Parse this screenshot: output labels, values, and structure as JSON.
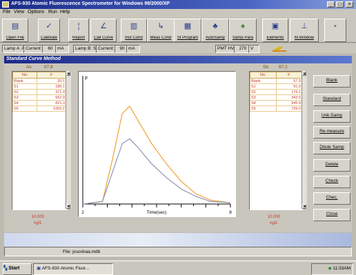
{
  "window": {
    "title": "AFS-930 Atomic Fluorescence Spectrometer for Windows 98/2000/XP",
    "controls": [
      "_",
      "□",
      "×"
    ]
  },
  "menu": [
    "File",
    "View",
    "Options",
    "Run",
    "Help"
  ],
  "toolbar": [
    {
      "label": "Open File",
      "icon": "folder-icon"
    },
    {
      "label": "Calibrate",
      "icon": "calibrate-icon"
    },
    {
      "label": "Report",
      "icon": "report-icon"
    },
    {
      "label": "Cali Curve",
      "icon": "curve-icon"
    },
    {
      "label": "Inst Cond",
      "icon": "instrument-icon"
    },
    {
      "label": "Meas Cond",
      "icon": "measure-icon"
    },
    {
      "label": "St Program",
      "icon": "program-icon"
    },
    {
      "label": "AutoSamp",
      "icon": "autosampler-icon"
    },
    {
      "label": "Samp Para",
      "icon": "sample-params-icon"
    },
    {
      "label": "Elements",
      "icon": "elements-icon"
    },
    {
      "label": "M.Window",
      "icon": "window-icon"
    },
    {
      "label": "",
      "icon": "exit-icon"
    }
  ],
  "status": {
    "lampA": "Lamp A: As",
    "currentA_label": "Current:",
    "currentA_value": "60",
    "currentA_unit": "mA",
    "lampB": "Lamp B: Sb",
    "currentB_label": "Current:",
    "currentB_value": "90",
    "currentB_unit": "mA",
    "pmt_label": "PMT HV:",
    "pmt_value": "270",
    "pmt_unit": "V"
  },
  "child_window": {
    "title": "Standard Curve Method"
  },
  "left_panel": {
    "element": "As",
    "header_value": "97.8",
    "columns": [
      "No.",
      "F"
    ],
    "rows": [
      {
        "no": "Blank",
        "f": "20.1"
      },
      {
        "no": "S1",
        "f": "186.1"
      },
      {
        "no": "S2",
        "f": "371.4"
      },
      {
        "no": "S3",
        "f": "562.9"
      },
      {
        "no": "S4",
        "f": "821.3"
      },
      {
        "no": "S5",
        "f": "1050.2"
      }
    ],
    "result_value": "10.000",
    "result_unit": "ng/L"
  },
  "right_panel": {
    "element": "Sb",
    "header_value": "97.2",
    "columns": [
      "No.",
      "F"
    ],
    "rows": [
      {
        "no": "Blank",
        "f": "57.3"
      },
      {
        "no": "S1",
        "f": "91.9"
      },
      {
        "no": "S2",
        "f": "176.1"
      },
      {
        "no": "S3",
        "f": "343.5"
      },
      {
        "no": "S4",
        "f": "545.9"
      },
      {
        "no": "S5",
        "f": "726.0"
      }
    ],
    "result_value": "10.000",
    "result_unit": "ng/L"
  },
  "plot": {
    "y_label": "F",
    "x_label": "Time(sec)",
    "x_start": "2",
    "x_end": "8",
    "series": [
      {
        "color": "#f0a232",
        "points": [
          [
            2,
            0
          ],
          [
            2.8,
            0.02
          ],
          [
            3.2,
            0.35
          ],
          [
            3.6,
            0.72
          ],
          [
            3.9,
            0.78
          ],
          [
            4.2,
            0.68
          ],
          [
            4.8,
            0.48
          ],
          [
            5.4,
            0.32
          ],
          [
            6.0,
            0.18
          ],
          [
            6.6,
            0.08
          ],
          [
            7.2,
            0.03
          ],
          [
            8,
            0.01
          ]
        ]
      },
      {
        "color": "#8c97b8",
        "points": [
          [
            2,
            0
          ],
          [
            2.8,
            0.02
          ],
          [
            3.2,
            0.25
          ],
          [
            3.6,
            0.48
          ],
          [
            3.9,
            0.52
          ],
          [
            4.2,
            0.46
          ],
          [
            4.8,
            0.32
          ],
          [
            5.4,
            0.21
          ],
          [
            6.0,
            0.12
          ],
          [
            6.6,
            0.06
          ],
          [
            7.2,
            0.02
          ],
          [
            8,
            0.01
          ]
        ]
      }
    ]
  },
  "side_buttons": [
    "Blank",
    "Standard",
    "Unk.Samp",
    "Re-measure",
    "Dilute Samp",
    "Delete",
    "Check",
    "Chec.",
    "Close"
  ],
  "file": {
    "label": "File:",
    "name": "jxsoshaa.mdb"
  },
  "taskbar": {
    "start": "Start",
    "task": "AFS-930 Atomic Fluor...",
    "clock": "11:33AM"
  }
}
